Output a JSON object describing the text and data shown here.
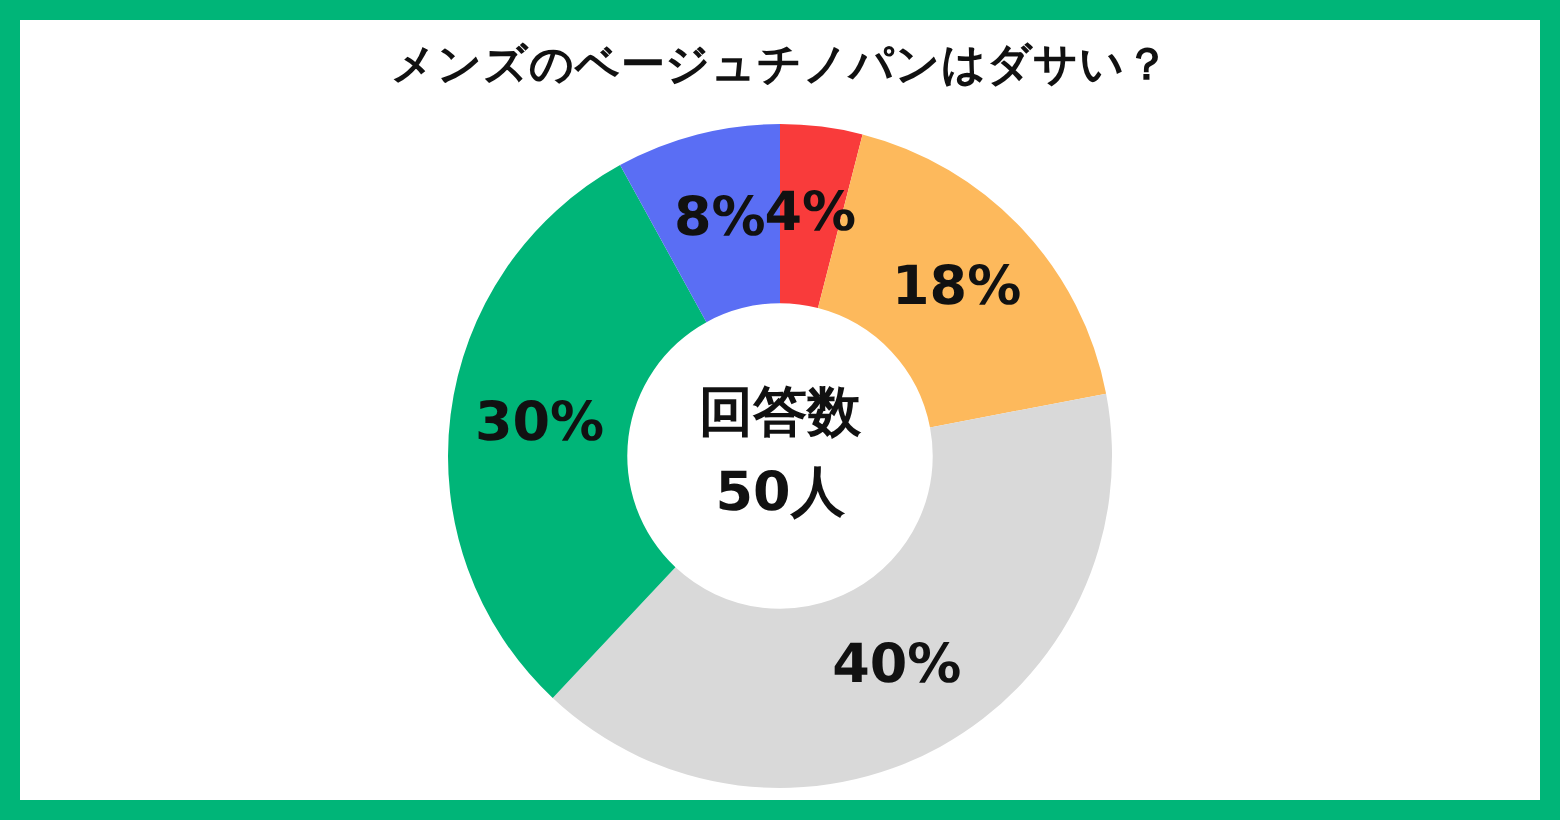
{
  "chart_data": {
    "type": "donut",
    "title": "メンズのベージュチノパンはダサい？",
    "categories": [
      null,
      null,
      null,
      null,
      null
    ],
    "values": [
      4,
      18,
      40,
      30,
      8
    ],
    "colors": [
      "#f93b3b",
      "#fdb95c",
      "#d9d9d9",
      "#00b578",
      "#5a6ef4"
    ],
    "value_labels": [
      "4%",
      "18%",
      "40%",
      "30%",
      "8%"
    ],
    "legend": false,
    "annotations": [
      "回答数",
      "50人"
    ]
  }
}
